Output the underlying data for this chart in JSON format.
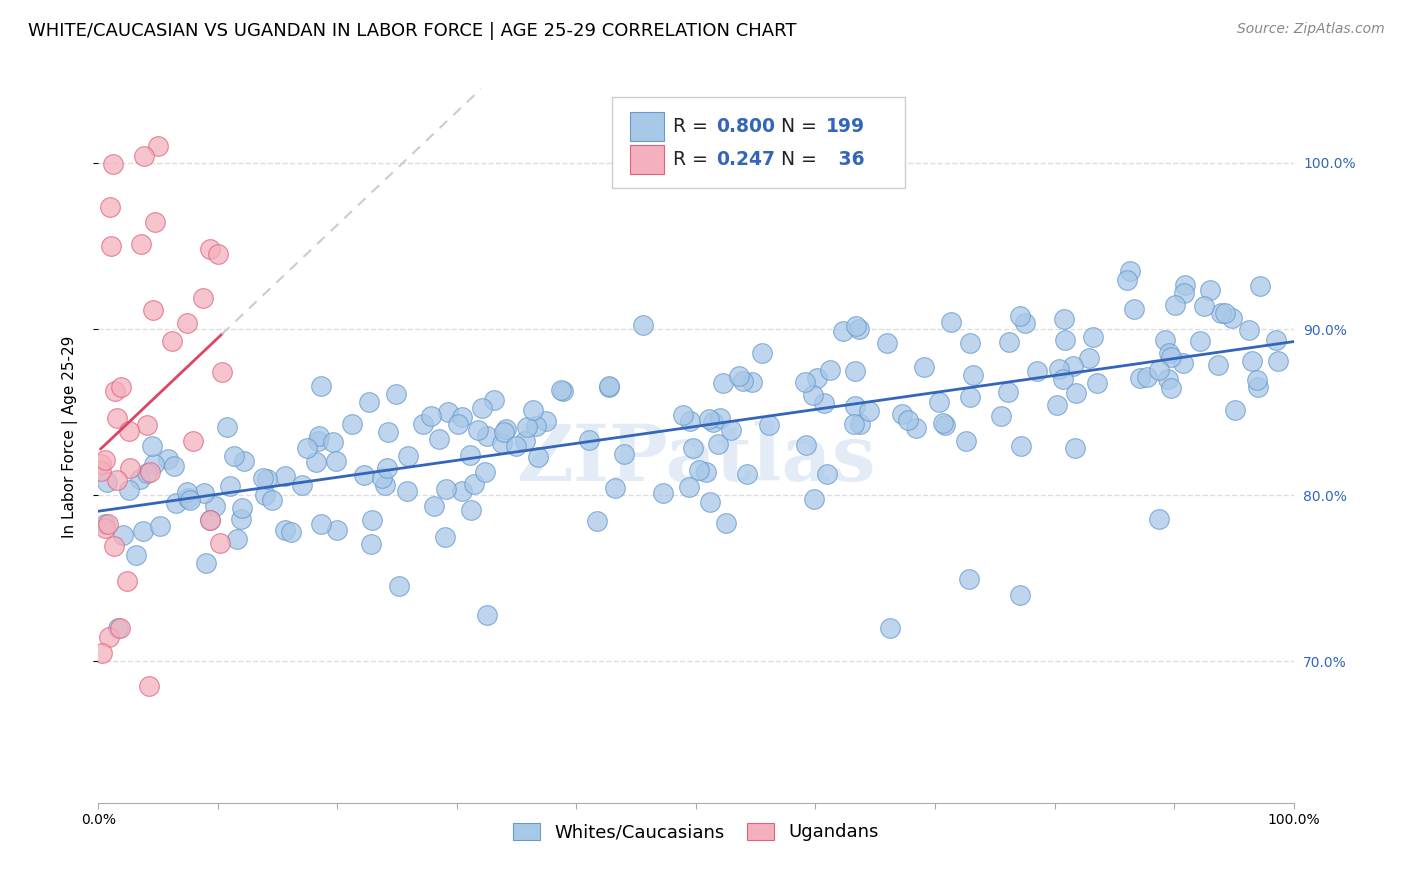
{
  "title": "WHITE/CAUCASIAN VS UGANDAN IN LABOR FORCE | AGE 25-29 CORRELATION CHART",
  "source": "Source: ZipAtlas.com",
  "ylabel": "In Labor Force | Age 25-29",
  "y_tick_labels_right": [
    "70.0%",
    "80.0%",
    "90.0%",
    "100.0%"
  ],
  "blue_R": 0.8,
  "blue_N": 199,
  "pink_R": 0.247,
  "pink_N": 36,
  "blue_color": "#a8c8e8",
  "pink_color": "#f4b0bc",
  "blue_edge_color": "#6699cc",
  "pink_edge_color": "#e06080",
  "blue_line_color": "#3366bb",
  "pink_line_color": "#dd4466",
  "trendline_dash_color": "#cccccc",
  "legend_label_blue": "Whites/Caucasians",
  "legend_label_pink": "Ugandans",
  "watermark": "ZIPatlas",
  "background_color": "#ffffff",
  "grid_color": "#dddddd",
  "title_fontsize": 13,
  "source_fontsize": 10,
  "axis_label_fontsize": 11,
  "tick_fontsize": 10,
  "x_min": 0.0,
  "x_max": 1.0,
  "y_min": 0.615,
  "y_max": 1.055
}
